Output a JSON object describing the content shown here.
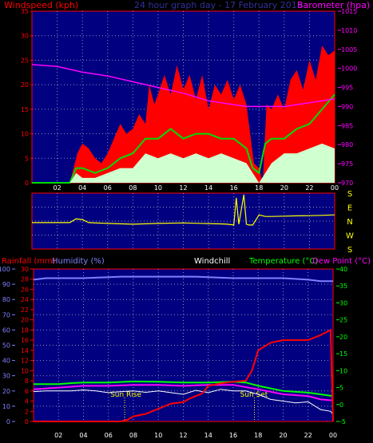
{
  "colors": {
    "frame": "#ff0000",
    "panel": "#000080",
    "grid": "#9090c0",
    "wind_gust": "#ff0000",
    "wind_avg": "#00dd00",
    "wind_min": "#d0ffd0",
    "barometer": "#ff00ff",
    "direction": "#ffff00",
    "rain": "#ff0000",
    "humidity": "#8080ff",
    "windchill": "#ffffff",
    "temperature": "#00ff00",
    "dewpoint": "#ff00ff",
    "axis_left_top": "#ff0000",
    "axis_right_top": "#ff00ff",
    "axis_left_bottom": "#8080ff",
    "axis_right_bottom": "#00ff00",
    "x_tick": "#ffffff",
    "sun": "#ffff00"
  },
  "chart_data": [
    {
      "id": "wind",
      "type": "bar",
      "title": "24 hour graph day - 17 February 2015",
      "legend_left": "Windspeed (kph)",
      "legend_right": "Barometer (hpa)",
      "x_ticks": [
        "02",
        "04",
        "06",
        "08",
        "10",
        "12",
        "14",
        "16",
        "18",
        "20",
        "22",
        "00"
      ],
      "y_left": {
        "min": 0,
        "max": 35,
        "ticks": [
          "0",
          "5",
          "10",
          "15",
          "20",
          "25",
          "30",
          "35"
        ]
      },
      "y_right": {
        "min": 970,
        "max": 1015,
        "ticks": [
          "970",
          "975",
          "980",
          "985",
          "990",
          "995",
          "1000",
          "1005",
          "1010",
          "1015"
        ]
      },
      "x_range": [
        0,
        24
      ],
      "series": [
        {
          "name": "gust",
          "points": [
            [
              0,
              0
            ],
            [
              3,
              0
            ],
            [
              3.3,
              3
            ],
            [
              3.6,
              6
            ],
            [
              4,
              8
            ],
            [
              4.5,
              7
            ],
            [
              5,
              5
            ],
            [
              5.5,
              4
            ],
            [
              6,
              6
            ],
            [
              6.5,
              9
            ],
            [
              7,
              12
            ],
            [
              7.5,
              10
            ],
            [
              8,
              11
            ],
            [
              8.5,
              14
            ],
            [
              9,
              12
            ],
            [
              9.3,
              20
            ],
            [
              9.7,
              16
            ],
            [
              10,
              18
            ],
            [
              10.5,
              22
            ],
            [
              11,
              18
            ],
            [
              11.5,
              24
            ],
            [
              12,
              19
            ],
            [
              12.5,
              22
            ],
            [
              13,
              17
            ],
            [
              13.5,
              22
            ],
            [
              14,
              15
            ],
            [
              14.5,
              20
            ],
            [
              15,
              18
            ],
            [
              15.5,
              21
            ],
            [
              16,
              17
            ],
            [
              16.5,
              20
            ],
            [
              17,
              16
            ],
            [
              17.3,
              10
            ],
            [
              17.6,
              4
            ],
            [
              18,
              3
            ],
            [
              18.3,
              0
            ],
            [
              18.6,
              16
            ],
            [
              19,
              15
            ],
            [
              19.5,
              18
            ],
            [
              20,
              15
            ],
            [
              20.5,
              21
            ],
            [
              21,
              23
            ],
            [
              21.5,
              19
            ],
            [
              22,
              25
            ],
            [
              22.5,
              21
            ],
            [
              23,
              28
            ],
            [
              23.5,
              26
            ],
            [
              24,
              27
            ]
          ]
        },
        {
          "name": "average",
          "points": [
            [
              0,
              0
            ],
            [
              3,
              0
            ],
            [
              3.5,
              3
            ],
            [
              4,
              3
            ],
            [
              5,
              2
            ],
            [
              6,
              3
            ],
            [
              7,
              5
            ],
            [
              8,
              6
            ],
            [
              9,
              9
            ],
            [
              10,
              9
            ],
            [
              11,
              11
            ],
            [
              12,
              9
            ],
            [
              13,
              10
            ],
            [
              14,
              10
            ],
            [
              15,
              9
            ],
            [
              16,
              9
            ],
            [
              17,
              7
            ],
            [
              17.5,
              3
            ],
            [
              18,
              2
            ],
            [
              18.5,
              8
            ],
            [
              19,
              9
            ],
            [
              20,
              9
            ],
            [
              21,
              11
            ],
            [
              22,
              12
            ],
            [
              23,
              15
            ],
            [
              24,
              18
            ]
          ]
        },
        {
          "name": "lull",
          "points": [
            [
              0,
              0
            ],
            [
              3,
              0
            ],
            [
              3.5,
              2
            ],
            [
              4,
              1
            ],
            [
              5,
              1
            ],
            [
              6,
              2
            ],
            [
              7,
              3
            ],
            [
              8,
              3
            ],
            [
              9,
              6
            ],
            [
              10,
              5
            ],
            [
              11,
              6
            ],
            [
              12,
              5
            ],
            [
              13,
              6
            ],
            [
              14,
              5
            ],
            [
              15,
              6
            ],
            [
              16,
              5
            ],
            [
              17,
              4
            ],
            [
              18,
              0
            ],
            [
              19,
              4
            ],
            [
              20,
              6
            ],
            [
              21,
              6
            ],
            [
              22,
              7
            ],
            [
              23,
              8
            ],
            [
              24,
              7
            ]
          ]
        },
        {
          "name": "barometer",
          "points": [
            [
              0,
              1001
            ],
            [
              2,
              1000.5
            ],
            [
              4,
              999
            ],
            [
              6,
              998
            ],
            [
              8,
              996.5
            ],
            [
              10,
              995
            ],
            [
              12,
              993.5
            ],
            [
              13,
              992.5
            ],
            [
              14,
              991.5
            ],
            [
              15,
              991
            ],
            [
              16,
              990.5
            ],
            [
              17,
              990
            ],
            [
              18,
              990
            ],
            [
              19,
              990
            ],
            [
              20,
              990
            ],
            [
              21,
              990.5
            ],
            [
              22,
              991
            ],
            [
              23,
              991.5
            ],
            [
              24,
              992
            ]
          ]
        }
      ]
    },
    {
      "id": "direction",
      "type": "line",
      "y_labels": [
        "S",
        "E",
        "N",
        "W",
        "S"
      ],
      "series": [
        {
          "name": "direction",
          "points": [
            [
              0,
              190
            ],
            [
              2,
              190
            ],
            [
              3,
              190
            ],
            [
              3.5,
              165
            ],
            [
              4,
              170
            ],
            [
              4.5,
              190
            ],
            [
              6,
              195
            ],
            [
              8,
              200
            ],
            [
              10,
              195
            ],
            [
              12,
              192
            ],
            [
              14,
              196
            ],
            [
              15,
              198
            ],
            [
              15.5,
              200
            ],
            [
              16,
              205
            ],
            [
              16.2,
              30
            ],
            [
              16.4,
              200
            ],
            [
              16.8,
              10
            ],
            [
              17,
              200
            ],
            [
              17.2,
              205
            ],
            [
              17.5,
              205
            ],
            [
              18,
              140
            ],
            [
              18.5,
              150
            ],
            [
              19,
              150
            ],
            [
              20,
              148
            ],
            [
              21,
              146
            ],
            [
              22,
              145
            ],
            [
              23,
              143
            ],
            [
              24,
              140
            ]
          ]
        }
      ]
    },
    {
      "id": "weather",
      "type": "line",
      "legend": [
        "Rainfall (mm)",
        "Humidity (%)",
        "Windchill",
        "Temperature (°C)",
        "Dew Point (°C)"
      ],
      "x_ticks": [
        "02",
        "04",
        "06",
        "08",
        "10",
        "12",
        "14",
        "16",
        "18",
        "20",
        "22",
        "00"
      ],
      "y_left": {
        "min": 0,
        "max": 100,
        "ticks": [
          "0",
          "10",
          "20",
          "30",
          "40",
          "50",
          "60",
          "70",
          "80",
          "90",
          "100"
        ]
      },
      "y_rain": {
        "min": 0,
        "max": 100,
        "ticks": [
          "0",
          "2",
          "4",
          "6",
          "8",
          "10",
          "12",
          "14",
          "16",
          "18",
          "20",
          "22",
          "24",
          "26",
          "28",
          "30"
        ]
      },
      "y_right": {
        "min": -5,
        "max": 40,
        "ticks": [
          "-5",
          "0",
          "5",
          "10",
          "15",
          "20",
          "25",
          "30",
          "35",
          "40"
        ]
      },
      "annotations": [
        "Sun Rise",
        "Sun Set"
      ],
      "sun_rise_hour": 7.3,
      "sun_set_hour": 17.7,
      "series": [
        {
          "name": "rainfall",
          "points": [
            [
              0,
              0
            ],
            [
              7,
              0
            ],
            [
              7.5,
              0.3
            ],
            [
              8,
              1
            ],
            [
              9,
              1.5
            ],
            [
              10,
              2.5
            ],
            [
              11,
              3.5
            ],
            [
              12,
              3.8
            ],
            [
              12.5,
              4.5
            ],
            [
              13,
              5
            ],
            [
              13.5,
              5.5
            ],
            [
              14,
              7
            ],
            [
              15,
              7.5
            ],
            [
              16,
              7.8
            ],
            [
              17,
              8
            ],
            [
              17.5,
              10
            ],
            [
              18,
              14
            ],
            [
              19,
              15.5
            ],
            [
              20,
              16
            ],
            [
              21,
              16
            ],
            [
              22,
              16
            ],
            [
              23,
              17
            ],
            [
              23.8,
              18
            ],
            [
              24,
              0
            ]
          ]
        },
        {
          "name": "humidity",
          "points": [
            [
              0,
              93
            ],
            [
              1,
              94
            ],
            [
              4,
              94
            ],
            [
              7,
              95
            ],
            [
              10,
              95
            ],
            [
              13,
              95
            ],
            [
              16,
              94
            ],
            [
              18,
              94
            ],
            [
              20,
              94
            ],
            [
              22,
              93
            ],
            [
              23,
              92
            ],
            [
              24,
              92
            ]
          ]
        },
        {
          "name": "windchill",
          "points": [
            [
              0,
              3.8
            ],
            [
              1,
              4
            ],
            [
              2,
              4
            ],
            [
              3,
              4
            ],
            [
              4,
              4.3
            ],
            [
              5,
              4
            ],
            [
              6,
              3.5
            ],
            [
              7,
              3.8
            ],
            [
              8,
              4
            ],
            [
              9,
              3.6
            ],
            [
              10,
              4
            ],
            [
              11,
              3.5
            ],
            [
              12,
              3
            ],
            [
              13,
              4.2
            ],
            [
              14,
              3.5
            ],
            [
              15,
              4.5
            ],
            [
              16,
              4
            ],
            [
              17,
              4
            ],
            [
              18,
              3
            ],
            [
              19,
              1.5
            ],
            [
              20,
              1
            ],
            [
              21,
              0.5
            ],
            [
              22,
              0.8
            ],
            [
              23,
              -1.5
            ],
            [
              23.8,
              -2
            ],
            [
              24,
              -3
            ]
          ]
        },
        {
          "name": "temperature",
          "points": [
            [
              0,
              6
            ],
            [
              2,
              6
            ],
            [
              3,
              6.3
            ],
            [
              4,
              6.5
            ],
            [
              6,
              6.5
            ],
            [
              8,
              6.8
            ],
            [
              10,
              6.7
            ],
            [
              12,
              6.5
            ],
            [
              14,
              6.5
            ],
            [
              16,
              6.7
            ],
            [
              17,
              6.5
            ],
            [
              18,
              5.5
            ],
            [
              20,
              4
            ],
            [
              22,
              3.5
            ],
            [
              23,
              3
            ],
            [
              24,
              2.5
            ]
          ]
        },
        {
          "name": "dewpoint",
          "points": [
            [
              0,
              4.5
            ],
            [
              2,
              5
            ],
            [
              4,
              5.5
            ],
            [
              6,
              5.5
            ],
            [
              8,
              5.8
            ],
            [
              10,
              5.8
            ],
            [
              12,
              5.5
            ],
            [
              14,
              5.8
            ],
            [
              16,
              5.8
            ],
            [
              18,
              4.5
            ],
            [
              20,
              3
            ],
            [
              22,
              2.5
            ],
            [
              23,
              1.5
            ],
            [
              24,
              1.2
            ]
          ]
        }
      ]
    }
  ]
}
